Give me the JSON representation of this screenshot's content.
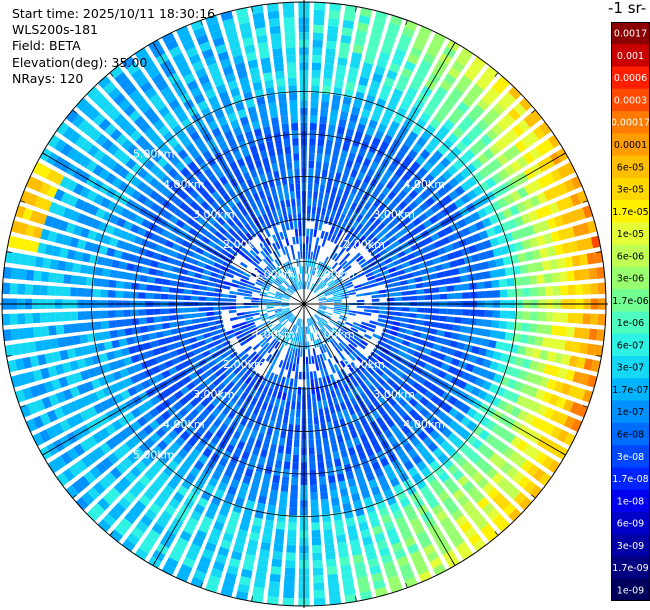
{
  "info": {
    "start_time": "Start time: 2025/10/11 18:30:16",
    "instrument": "WLS200s-181",
    "field": "Field: BETA",
    "elevation": "Elevation(deg): 35.00",
    "nrays": "NRays: 120"
  },
  "colorbar": {
    "title": "-1 sr-",
    "labels": [
      "0.0017",
      "0.001",
      "0.0006",
      "0.0003",
      "0.00017",
      "0.0001",
      "6e-05",
      "3e-05",
      "1.7e-05",
      "1e-05",
      "6e-06",
      "3e-06",
      "1.7e-06",
      "1e-06",
      "6e-07",
      "3e-07",
      "1.7e-07",
      "1e-07",
      "6e-08",
      "3e-08",
      "1.7e-08",
      "1e-08",
      "6e-09",
      "3e-09",
      "1.7e-09",
      "1e-09"
    ],
    "colors": [
      "#8b0000",
      "#c80000",
      "#ff1e00",
      "#ff4a00",
      "#ff7a00",
      "#ff9c00",
      "#ffbe00",
      "#ffd800",
      "#fff200",
      "#e4ff38",
      "#c0ff54",
      "#98ff6e",
      "#70ff90",
      "#4cffc0",
      "#2ef2e4",
      "#14d8f4",
      "#00b4ff",
      "#0090ff",
      "#006cff",
      "#0048ff",
      "#0024ff",
      "#0000ee",
      "#0000c8",
      "#0000a4",
      "#000080",
      "#00005a"
    ]
  },
  "chart_data": {
    "type": "heatmap",
    "projection": "polar PPI",
    "field": "BETA",
    "elevation_deg": 35.0,
    "n_rays": 120,
    "range_ring_labels": [
      "1.00km",
      "2.00km",
      "3.00km",
      "4.00km",
      "5.00km"
    ],
    "range_rings_km": [
      1,
      2,
      3,
      4,
      5
    ],
    "colorbar_ticks": [
      "0.0017",
      "0.001",
      "0.0006",
      "0.0003",
      "0.00017",
      "0.0001",
      "6e-05",
      "3e-05",
      "1.7e-05",
      "1e-05",
      "6e-06",
      "3e-06",
      "1.7e-06",
      "1e-06",
      "6e-07",
      "3e-07",
      "1.7e-07",
      "1e-07",
      "6e-08",
      "3e-08",
      "1.7e-08",
      "1e-08",
      "6e-09",
      "3e-09",
      "1.7e-09",
      "1e-09"
    ],
    "approx_profile": [
      {
        "range_km": 0.5,
        "beta": "1e-07 to 1.7e-07"
      },
      {
        "range_km": 1.5,
        "beta": "3e-08 to 1e-07"
      },
      {
        "range_km": 3.0,
        "beta": "3e-08 to 6e-08"
      },
      {
        "range_km": 4.5,
        "beta": "1e-07 to 3e-07"
      },
      {
        "range_km": 5.5,
        "beta": "1e-06 to 1e-05 (east edge)"
      }
    ],
    "hotspot": {
      "location": "west edge",
      "beta": "3e-05 to 6e-05"
    }
  }
}
